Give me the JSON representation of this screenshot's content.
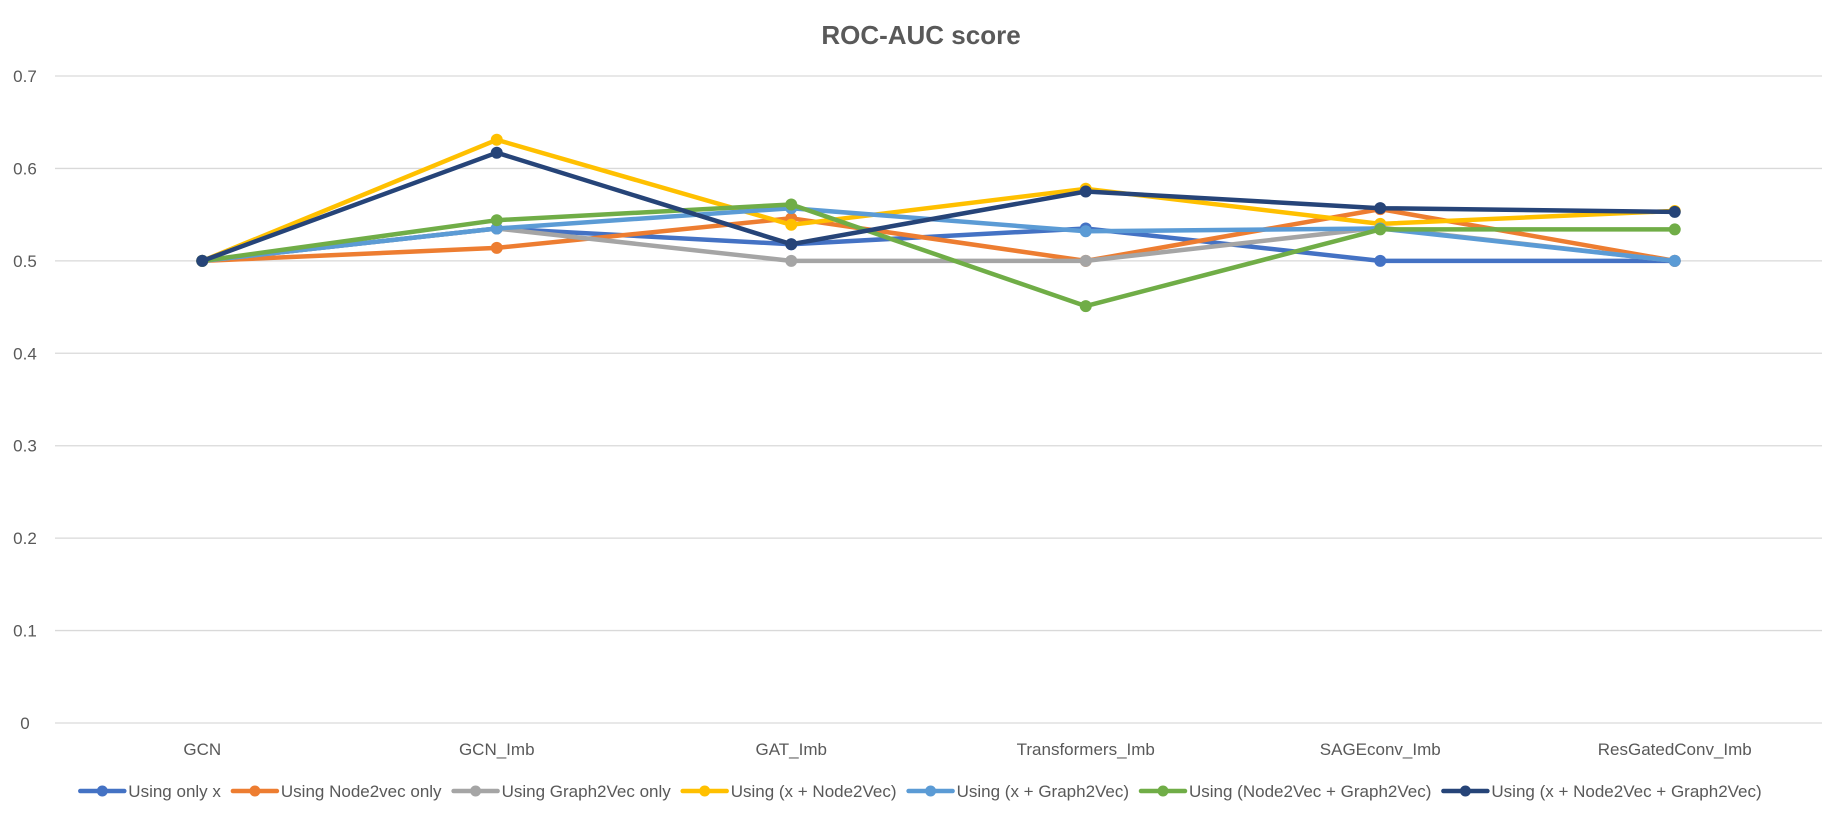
{
  "chart_data": {
    "type": "line",
    "title": "ROC-AUC score",
    "xlabel": "",
    "ylabel": "",
    "categories": [
      "GCN",
      "GCN_Imb",
      "GAT_Imb",
      "Transformers_Imb",
      "SAGEconv_Imb",
      "ResGatedConv_Imb"
    ],
    "ylim": [
      0,
      0.7
    ],
    "yticks": [
      "0",
      "0.1",
      "0.2",
      "0.3",
      "0.4",
      "0.5",
      "0.6",
      "0.7"
    ],
    "grid": true,
    "legend_position": "bottom",
    "series": [
      {
        "name": "Using only x",
        "color": "#4472C4",
        "values": [
          0.5,
          0.535,
          0.518,
          0.535,
          0.5,
          0.5
        ]
      },
      {
        "name": "Using Node2vec only",
        "color": "#ED7D31",
        "values": [
          0.5,
          0.514,
          0.546,
          0.5,
          0.556,
          0.5
        ]
      },
      {
        "name": "Using Graph2Vec only",
        "color": "#A5A5A5",
        "values": [
          0.5,
          0.535,
          0.5,
          0.5,
          0.536,
          0.5
        ]
      },
      {
        "name": "Using (x + Node2Vec)",
        "color": "#FFC000",
        "values": [
          0.5,
          0.631,
          0.539,
          0.578,
          0.54,
          0.554
        ]
      },
      {
        "name": "Using (x + Graph2Vec)",
        "color": "#5B9BD5",
        "values": [
          0.5,
          0.535,
          0.557,
          0.532,
          0.535,
          0.5
        ]
      },
      {
        "name": "Using (Node2Vec + Graph2Vec)",
        "color": "#70AD47",
        "values": [
          0.5,
          0.544,
          0.561,
          0.451,
          0.534,
          0.534
        ]
      },
      {
        "name": "Using (x + Node2Vec + Graph2Vec)",
        "color": "#264478",
        "values": [
          0.5,
          0.617,
          0.518,
          0.575,
          0.557,
          0.553
        ]
      }
    ]
  }
}
